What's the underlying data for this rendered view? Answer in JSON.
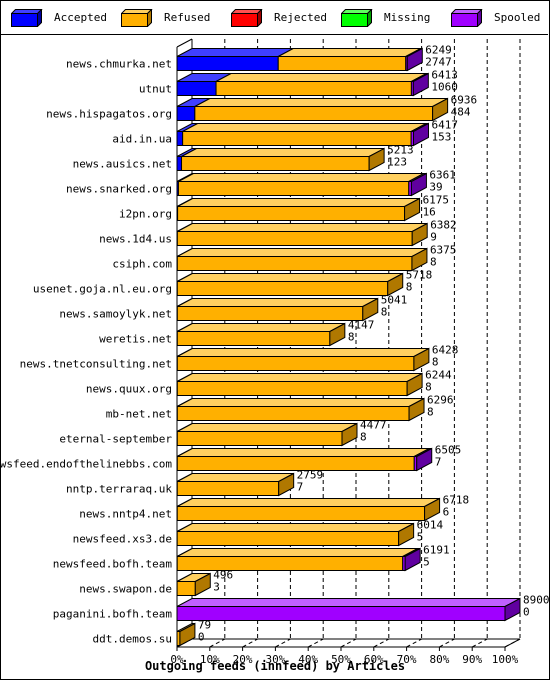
{
  "chart_data": {
    "type": "bar",
    "orientation": "horizontal",
    "stacked": true,
    "percent_stacked": true,
    "three_d": true,
    "xlabel": "Outgoing feeds (innfeed) by Articles",
    "xlim": [
      0,
      100
    ],
    "x_ticks": [
      "0%",
      "10%",
      "20%",
      "30%",
      "40%",
      "50%",
      "60%",
      "70%",
      "80%",
      "90%",
      "100%"
    ],
    "grid": "vertical-dashed",
    "legend_position": "top",
    "max_total": 8900,
    "series": [
      {
        "name": "Accepted",
        "color": "#0000ff",
        "side_color": "#0000a0",
        "top_color": "#4040ff"
      },
      {
        "name": "Refused",
        "color": "#ffb000",
        "side_color": "#b07800",
        "top_color": "#ffd060"
      },
      {
        "name": "Rejected",
        "color": "#ff0000",
        "side_color": "#a00000",
        "top_color": "#ff5050"
      },
      {
        "name": "Missing",
        "color": "#00ff00",
        "side_color": "#00a000",
        "top_color": "#60ff60"
      },
      {
        "name": "Spooled",
        "color": "#a000ff",
        "side_color": "#6000a0",
        "top_color": "#c060ff"
      }
    ],
    "rows": [
      {
        "host": "news.chmurka.net",
        "total": "6249",
        "accepted_count": "2747",
        "accepted": 2747,
        "refused": 3460,
        "rejected": 0,
        "missing": 0,
        "spooled": 42
      },
      {
        "host": "utnut",
        "total": "6413",
        "accepted_count": "1060",
        "accepted": 1060,
        "refused": 5300,
        "rejected": 0,
        "missing": 0,
        "spooled": 53
      },
      {
        "host": "news.hispagatos.org",
        "total": "6936",
        "accepted_count": "484",
        "accepted": 484,
        "refused": 6452,
        "rejected": 0,
        "missing": 0,
        "spooled": 0
      },
      {
        "host": "aid.in.ua",
        "total": "6417",
        "accepted_count": "153",
        "accepted": 153,
        "refused": 6200,
        "rejected": 0,
        "missing": 0,
        "spooled": 64
      },
      {
        "host": "news.ausics.net",
        "total": "5213",
        "accepted_count": "123",
        "accepted": 123,
        "refused": 5090,
        "rejected": 0,
        "missing": 0,
        "spooled": 0
      },
      {
        "host": "news.snarked.org",
        "total": "6361",
        "accepted_count": "39",
        "accepted": 39,
        "refused": 6250,
        "rejected": 0,
        "missing": 0,
        "spooled": 72
      },
      {
        "host": "i2pn.org",
        "total": "6175",
        "accepted_count": "16",
        "accepted": 16,
        "refused": 6159,
        "rejected": 0,
        "missing": 0,
        "spooled": 0
      },
      {
        "host": "news.1d4.us",
        "total": "6382",
        "accepted_count": "9",
        "accepted": 9,
        "refused": 6373,
        "rejected": 0,
        "missing": 0,
        "spooled": 0
      },
      {
        "host": "csiph.com",
        "total": "6375",
        "accepted_count": "8",
        "accepted": 8,
        "refused": 6367,
        "rejected": 0,
        "missing": 0,
        "spooled": 0
      },
      {
        "host": "usenet.goja.nl.eu.org",
        "total": "5718",
        "accepted_count": "8",
        "accepted": 8,
        "refused": 5710,
        "rejected": 0,
        "missing": 0,
        "spooled": 0
      },
      {
        "host": "news.samoylyk.net",
        "total": "5041",
        "accepted_count": "8",
        "accepted": 8,
        "refused": 5033,
        "rejected": 0,
        "missing": 0,
        "spooled": 0
      },
      {
        "host": "weretis.net",
        "total": "4147",
        "accepted_count": "8",
        "accepted": 8,
        "refused": 4139,
        "rejected": 0,
        "missing": 0,
        "spooled": 0
      },
      {
        "host": "news.tnetconsulting.net",
        "total": "6428",
        "accepted_count": "8",
        "accepted": 8,
        "refused": 6420,
        "rejected": 0,
        "missing": 0,
        "spooled": 0
      },
      {
        "host": "news.quux.org",
        "total": "6244",
        "accepted_count": "8",
        "accepted": 8,
        "refused": 6236,
        "rejected": 0,
        "missing": 0,
        "spooled": 0
      },
      {
        "host": "mb-net.net",
        "total": "6296",
        "accepted_count": "8",
        "accepted": 8,
        "refused": 6288,
        "rejected": 0,
        "missing": 0,
        "spooled": 0
      },
      {
        "host": "eternal-september",
        "total": "4477",
        "accepted_count": "8",
        "accepted": 8,
        "refused": 4469,
        "rejected": 0,
        "missing": 0,
        "spooled": 0
      },
      {
        "host": "newsfeed.endofthelinebbs.com",
        "total": "6505",
        "accepted_count": "7",
        "accepted": 7,
        "refused": 6430,
        "rejected": 0,
        "missing": 0,
        "spooled": 68
      },
      {
        "host": "nntp.terraraq.uk",
        "total": "2759",
        "accepted_count": "7",
        "accepted": 7,
        "refused": 2752,
        "rejected": 0,
        "missing": 0,
        "spooled": 0
      },
      {
        "host": "news.nntp4.net",
        "total": "6718",
        "accepted_count": "6",
        "accepted": 6,
        "refused": 6712,
        "rejected": 0,
        "missing": 0,
        "spooled": 0
      },
      {
        "host": "newsfeed.xs3.de",
        "total": "6014",
        "accepted_count": "5",
        "accepted": 5,
        "refused": 6009,
        "rejected": 0,
        "missing": 0,
        "spooled": 0
      },
      {
        "host": "newsfeed.bofh.team",
        "total": "6191",
        "accepted_count": "5",
        "accepted": 5,
        "refused": 6120,
        "rejected": 0,
        "missing": 0,
        "spooled": 66
      },
      {
        "host": "news.swapon.de",
        "total": "496",
        "accepted_count": "3",
        "accepted": 3,
        "refused": 493,
        "rejected": 0,
        "missing": 0,
        "spooled": 0
      },
      {
        "host": "paganini.bofh.team",
        "total": "8900",
        "accepted_count": "0",
        "accepted": 0,
        "refused": 0,
        "rejected": 0,
        "missing": 0,
        "spooled": 8900
      },
      {
        "host": "ddt.demos.su",
        "total": "79",
        "accepted_count": "0",
        "accepted": 0,
        "refused": 79,
        "rejected": 0,
        "missing": 0,
        "spooled": 0
      }
    ]
  }
}
